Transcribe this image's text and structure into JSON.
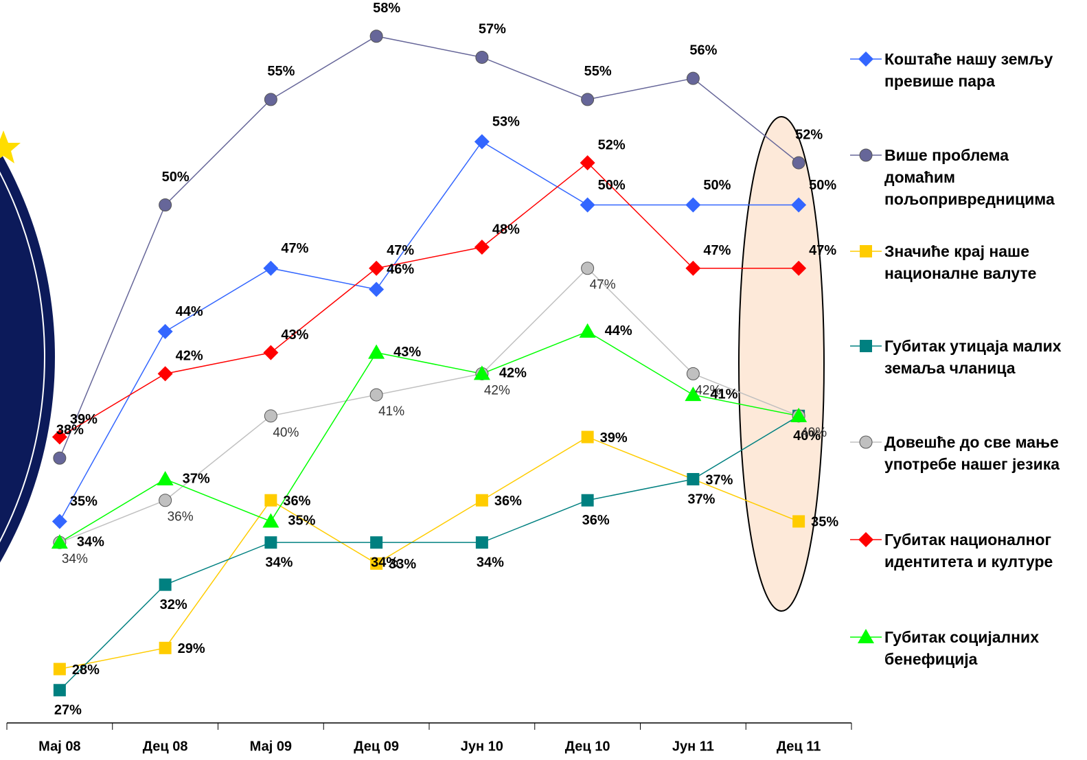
{
  "chart_data": {
    "type": "line",
    "categories": [
      "Мај 08",
      "Дец 08",
      "Мај 09",
      "Дец 09",
      "Јун 10",
      "Дец 10",
      "Јун 11",
      "Дец 11"
    ],
    "ylim": [
      26,
      59
    ],
    "series": [
      {
        "name": "Коштаће нашу земљу превише пара",
        "color": "#3366ff",
        "marker": "diamond",
        "values": [
          35,
          44,
          47,
          46,
          53,
          50,
          50,
          50
        ],
        "value_labels": [
          "35%",
          "44%",
          "47%",
          "46%",
          "53%",
          "50%",
          "50%",
          "50%"
        ]
      },
      {
        "name": "Више проблема домаћим пољопривредницима",
        "color": "#666699",
        "marker": "circle",
        "values": [
          38,
          50,
          55,
          58,
          57,
          55,
          56,
          52
        ],
        "value_labels": [
          "38%",
          "50%",
          "55%",
          "58%",
          "57%",
          "55%",
          "56%",
          "52%"
        ]
      },
      {
        "name": "Значиће крај наше националне валуте",
        "color": "#ffcc00",
        "marker": "square",
        "values": [
          28,
          29,
          36,
          33,
          36,
          39,
          37,
          35
        ],
        "value_labels": [
          "28%",
          "29%",
          "36%",
          "33%",
          "36%",
          "39%",
          "37%",
          "35%"
        ]
      },
      {
        "name": "Губитак утицаја малих земаља чланица",
        "color": "#008080",
        "marker": "square",
        "values": [
          27,
          32,
          34,
          34,
          34,
          36,
          37,
          40
        ],
        "value_labels": [
          "27%",
          "32%",
          "34%",
          "34%",
          "34%",
          "36%",
          "37%",
          "40%"
        ]
      },
      {
        "name": "Довешће до све мање употребе нашег језика",
        "color": "#c0c0c0",
        "marker": "circle",
        "values": [
          34,
          36,
          40,
          41,
          42,
          47,
          42,
          40
        ],
        "value_labels": [
          "34%",
          "36%",
          "40%",
          "41%",
          "42%",
          "47%",
          "42%",
          "40%"
        ]
      },
      {
        "name": "Губитак националног идентитета и културе",
        "color": "#ff0000",
        "marker": "diamond",
        "values": [
          39,
          42,
          43,
          47,
          48,
          52,
          47,
          47
        ],
        "value_labels": [
          "39%",
          "42%",
          "43%",
          "47%",
          "48%",
          "52%",
          "47%",
          "47%"
        ]
      },
      {
        "name": "Губитак социјалних бенефиција",
        "color": "#00ff00",
        "marker": "triangle",
        "values": [
          34,
          37,
          35,
          43,
          42,
          44,
          41,
          40
        ],
        "value_labels": [
          "34%",
          "37%",
          "35%",
          "43%",
          "42%",
          "44%",
          "41%",
          null
        ]
      }
    ]
  }
}
